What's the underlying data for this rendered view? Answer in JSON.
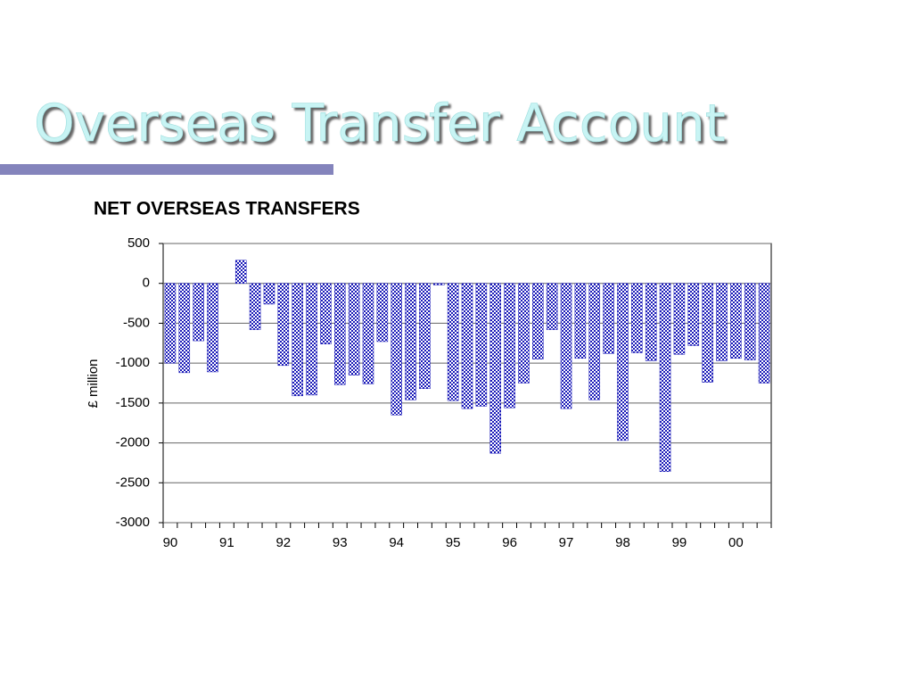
{
  "slide_title": "Overseas Transfer Account",
  "chart_data": {
    "type": "bar",
    "title": "NET OVERSEAS TRANSFERS",
    "y_label": "£ million",
    "categories": [
      "90",
      null,
      null,
      null,
      "91",
      null,
      null,
      null,
      "92",
      null,
      null,
      null,
      "93",
      null,
      null,
      null,
      "94",
      null,
      null,
      null,
      "95",
      null,
      null,
      null,
      "96",
      null,
      null,
      null,
      "97",
      null,
      null,
      null,
      "98",
      null,
      null,
      null,
      "99",
      null,
      null,
      null,
      "00",
      null,
      null
    ],
    "values": [
      -1000,
      -1120,
      -720,
      -1110,
      0,
      290,
      -580,
      -260,
      -1030,
      -1410,
      -1400,
      -760,
      -1270,
      -1150,
      -1260,
      -730,
      -1650,
      -1460,
      -1320,
      -20,
      -1470,
      -1570,
      -1540,
      -2130,
      -1560,
      -1250,
      -950,
      -580,
      -1570,
      -940,
      -1460,
      -880,
      -1970,
      -870,
      -970,
      -2360,
      -890,
      -780,
      -1240,
      -970,
      -940,
      -960,
      -1250
    ],
    "color": "#1a1ab8",
    "ylim": [
      -3000,
      500
    ],
    "yticks": [
      500,
      0,
      -500,
      -1000,
      -1500,
      -2000,
      -2500,
      -3000
    ],
    "grid": true
  }
}
